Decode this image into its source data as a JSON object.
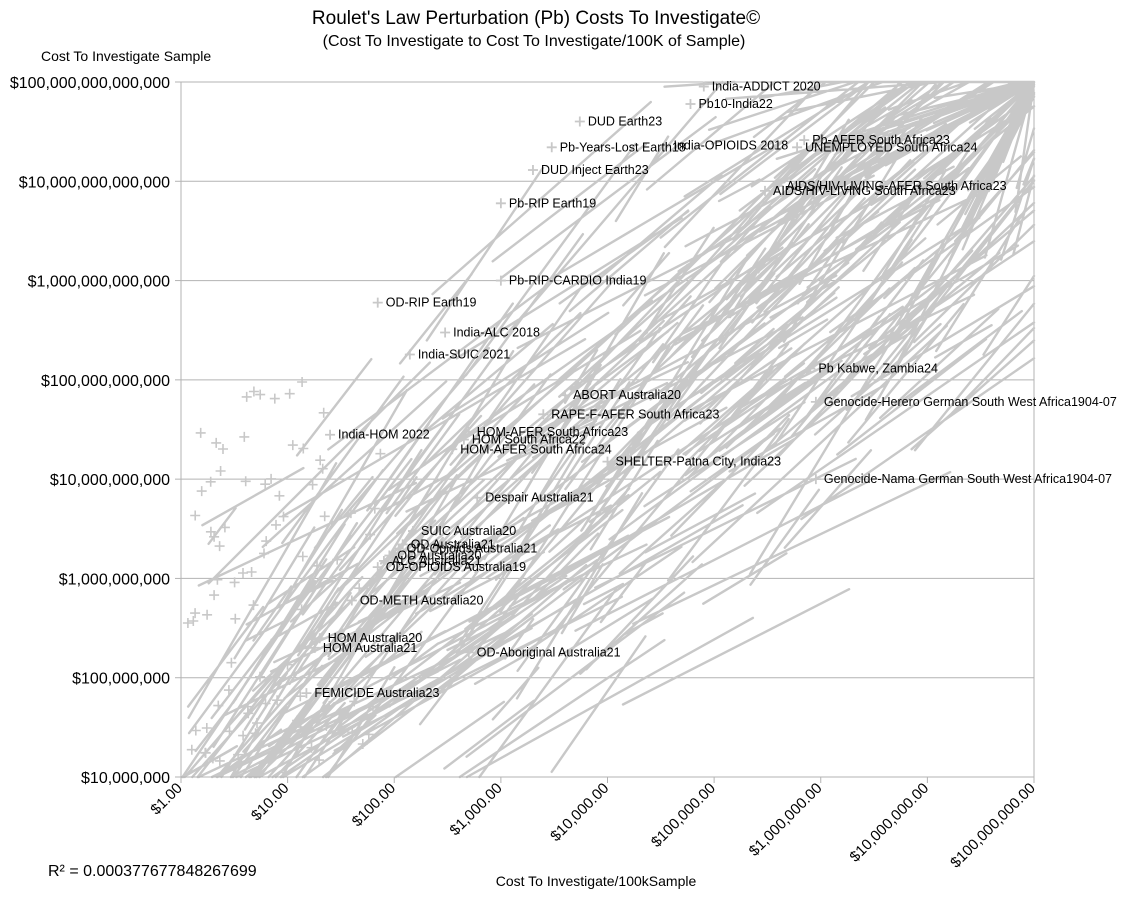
{
  "chart_data": {
    "type": "scatter",
    "title": "Roulet's Law Perturbation (Pb) Costs To Investigate©",
    "subtitle": "(Cost To Investigate to Cost To Investigate/100K of Sample)",
    "xlabel": "Cost To Investigate/100kSample",
    "ylabel": "Cost To Investigate Sample",
    "x_scale": "log",
    "y_scale": "log",
    "xlim": [
      1,
      100000000
    ],
    "ylim": [
      10000000,
      100000000000000
    ],
    "x_tick_labels": [
      "$1.00",
      "$10.00",
      "$100.00",
      "$1,000.00",
      "$10,000.00",
      "$100,000.00",
      "$1,000,000.00",
      "$10,000,000.00",
      "$100,000,000.00"
    ],
    "y_tick_labels": [
      "$10,000,000",
      "$100,000,000",
      "$1,000,000,000",
      "$10,000,000,000",
      "$100,000,000,000",
      "$1,000,000,000,000",
      "$10,000,000,000,000",
      "$100,000,000,000,000"
    ],
    "grid": "horizontal",
    "series_color": "#c8c8c8",
    "marker": "+",
    "r_squared_text": "R² = 0.000377677848267699",
    "points": [
      {
        "label": "India-ADDICT 2020",
        "x": 80000,
        "y": 90000000000000
      },
      {
        "label": "Pb10-India22",
        "x": 60000,
        "y": 60000000000000
      },
      {
        "label": "DUD Earth23",
        "x": 5500,
        "y": 40000000000000
      },
      {
        "label": "Pb-AFER South Africa23",
        "x": 700000,
        "y": 26000000000000
      },
      {
        "label": "UNEMPLOYED South Africa24",
        "x": 600000,
        "y": 22000000000000
      },
      {
        "label": "India-OPIOIDS 2018",
        "x": 35000,
        "y": 23000000000000
      },
      {
        "label": "Pb-Years-Lost Earth18",
        "x": 3000,
        "y": 22000000000000
      },
      {
        "label": "DUD Inject Earth23",
        "x": 2000,
        "y": 13000000000000
      },
      {
        "label": "AIDS/HIV-LIVING-AFER South Africa23",
        "x": 400000,
        "y": 9000000000000
      },
      {
        "label": "AIDS/HIV-LIVING South Africa23",
        "x": 300000,
        "y": 8000000000000
      },
      {
        "label": "Pb-RIP Earth19",
        "x": 1000,
        "y": 6000000000000
      },
      {
        "label": "Pb-RIP-CARDIO India19",
        "x": 1000,
        "y": 1000000000000
      },
      {
        "label": "OD-RIP Earth19",
        "x": 70,
        "y": 600000000000
      },
      {
        "label": "India-ALC 2018",
        "x": 300,
        "y": 300000000000
      },
      {
        "label": "India-SUIC 2021",
        "x": 140,
        "y": 180000000000
      },
      {
        "label": "Pb Kabwe, Zambia24",
        "x": 800000,
        "y": 130000000000
      },
      {
        "label": "ABORT Australia20",
        "x": 4000,
        "y": 70000000000
      },
      {
        "label": "Genocide-Herero German South West Africa1904-07",
        "x": 900000,
        "y": 60000000000
      },
      {
        "label": "RAPE-F-AFER South Africa23",
        "x": 2500,
        "y": 45000000000
      },
      {
        "label": "India-HOM 2022",
        "x": 25,
        "y": 28000000000
      },
      {
        "label": "HOM-AFER South Africa23",
        "x": 500,
        "y": 30000000000
      },
      {
        "label": "HOM South Africa22",
        "x": 450,
        "y": 25000000000
      },
      {
        "label": "HOM-AFER South Africa24",
        "x": 350,
        "y": 20000000000
      },
      {
        "label": "SHELTER-Patna City, India23",
        "x": 10000,
        "y": 15000000000
      },
      {
        "label": "Genocide-Nama German South West Africa1904-07",
        "x": 900000,
        "y": 10000000000
      },
      {
        "label": "Despair Australia21",
        "x": 600,
        "y": 6500000000
      },
      {
        "label": "SUIC Australia20",
        "x": 150,
        "y": 3000000000
      },
      {
        "label": "OD Australia21",
        "x": 120,
        "y": 2200000000
      },
      {
        "label": "OD-Opioids Australia21",
        "x": 110,
        "y": 2000000000
      },
      {
        "label": "OD Australia20",
        "x": 90,
        "y": 1700000000
      },
      {
        "label": "ALC Australia21",
        "x": 80,
        "y": 1500000000
      },
      {
        "label": "OD-OPIOIDS Australia19",
        "x": 70,
        "y": 1300000000
      },
      {
        "label": "OD-METH Australia20",
        "x": 40,
        "y": 600000000
      },
      {
        "label": "HOM Australia20",
        "x": 20,
        "y": 250000000
      },
      {
        "label": "HOM Australia21",
        "x": 18,
        "y": 200000000
      },
      {
        "label": "OD-Aboriginal Australia21",
        "x": 500,
        "y": 180000000
      },
      {
        "label": "FEMICIDE Australia23",
        "x": 15,
        "y": 70000000
      }
    ]
  }
}
